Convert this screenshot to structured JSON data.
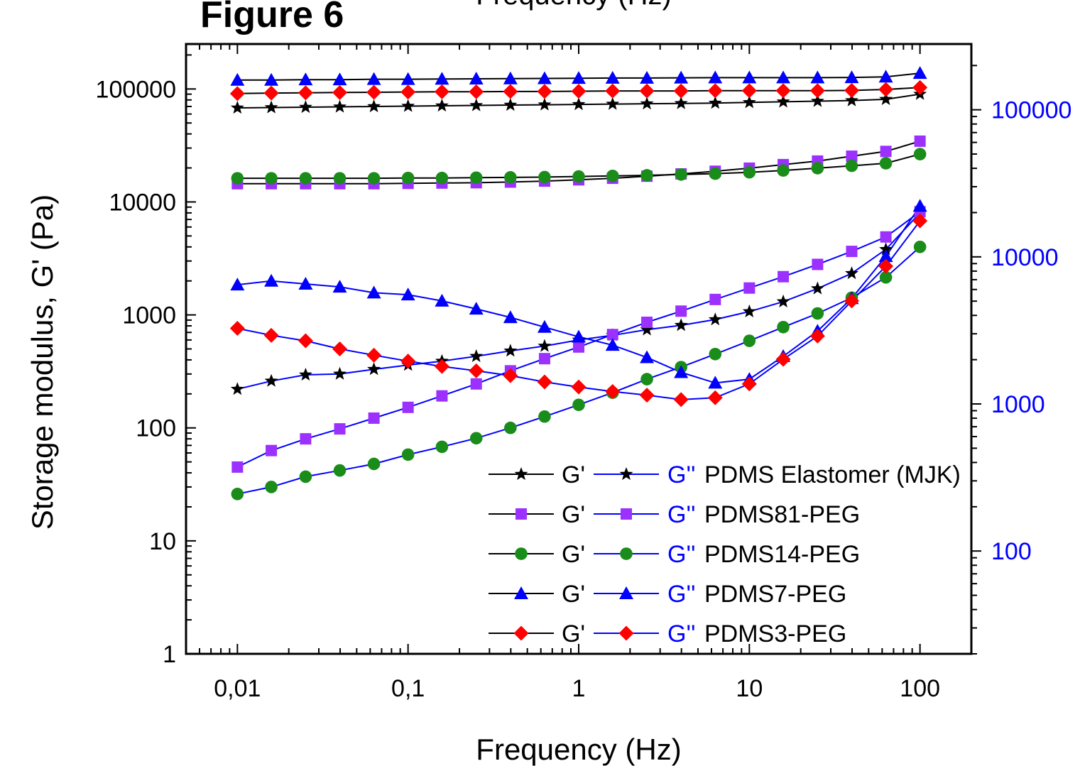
{
  "figure_label": "Figure 6",
  "top_cut_text": "Frequency (Hz)",
  "chart_data": {
    "type": "line",
    "title": "",
    "xlabel": "Frequency (Hz)",
    "ylabel": "Storage modulus, G' (Pa)",
    "x_scale": "log",
    "y_scale": "log",
    "y2_scale": "log",
    "xlim": [
      0.005,
      200
    ],
    "ylim": [
      1,
      250000
    ],
    "y2lim": [
      20,
      280000
    ],
    "x_ticks": [
      {
        "value": 0.01,
        "label": "0,01"
      },
      {
        "value": 0.1,
        "label": "0,1"
      },
      {
        "value": 1,
        "label": "1"
      },
      {
        "value": 10,
        "label": "10"
      },
      {
        "value": 100,
        "label": "100"
      }
    ],
    "y_ticks": [
      {
        "value": 1,
        "label": "1"
      },
      {
        "value": 10,
        "label": "10"
      },
      {
        "value": 100,
        "label": "100"
      },
      {
        "value": 1000,
        "label": "1000"
      },
      {
        "value": 10000,
        "label": "10000"
      },
      {
        "value": 100000,
        "label": "100000"
      }
    ],
    "y2_ticks": [
      {
        "value": 100,
        "label": "100"
      },
      {
        "value": 1000,
        "label": "1000"
      },
      {
        "value": 10000,
        "label": "10000"
      },
      {
        "value": 100000,
        "label": "100000"
      }
    ],
    "y2_color": "#0000ff",
    "grid": false,
    "legend_position": "bottom-right",
    "x": [
      0.01,
      0.0158,
      0.0251,
      0.0398,
      0.0631,
      0.1,
      0.158,
      0.251,
      0.398,
      0.631,
      1,
      1.58,
      2.51,
      3.98,
      6.31,
      10,
      15.8,
      25.1,
      39.8,
      63.1,
      100
    ],
    "series": [
      {
        "sample": "PDMS Elastomer (MJK)",
        "modulus": "G'",
        "marker": "star",
        "color": "#000000",
        "line_color": "#000000",
        "values": [
          68000,
          68500,
          69000,
          69500,
          70000,
          70500,
          71000,
          71500,
          72000,
          72500,
          73000,
          73500,
          74000,
          74500,
          75000,
          76000,
          77000,
          78000,
          79000,
          81000,
          90000
        ]
      },
      {
        "sample": "PDMS Elastomer (MJK)",
        "modulus": "G''",
        "marker": "star",
        "color": "#000000",
        "line_color": "#0000ff",
        "values": [
          220,
          260,
          295,
          300,
          330,
          360,
          390,
          430,
          480,
          530,
          600,
          660,
          740,
          810,
          910,
          1070,
          1310,
          1710,
          2330,
          3800,
          8000
        ]
      },
      {
        "sample": "PDMS81-PEG",
        "modulus": "G'",
        "marker": "square",
        "color": "#9b30ff",
        "line_color": "#000000",
        "values": [
          14500,
          14500,
          14500,
          14500,
          14500,
          14600,
          14700,
          14800,
          15000,
          15300,
          15700,
          16200,
          16900,
          17700,
          18700,
          19900,
          21400,
          23000,
          25400,
          28000,
          34500
        ]
      },
      {
        "sample": "PDMS81-PEG",
        "modulus": "G''",
        "marker": "square",
        "color": "#9b30ff",
        "line_color": "#0000ff",
        "values": [
          45,
          63,
          80,
          98,
          122,
          152,
          192,
          245,
          320,
          410,
          520,
          670,
          860,
          1080,
          1370,
          1730,
          2180,
          2800,
          3650,
          4900,
          8200
        ]
      },
      {
        "sample": "PDMS14-PEG",
        "modulus": "G'",
        "marker": "circle",
        "color": "#1a8c1a",
        "line_color": "#000000",
        "values": [
          16200,
          16200,
          16200,
          16200,
          16200,
          16300,
          16300,
          16400,
          16500,
          16600,
          16800,
          17000,
          17200,
          17500,
          17800,
          18300,
          19000,
          19900,
          20900,
          22000,
          26500
        ]
      },
      {
        "sample": "PDMS14-PEG",
        "modulus": "G''",
        "marker": "circle",
        "color": "#1a8c1a",
        "line_color": "#0000ff",
        "values": [
          26,
          30,
          37,
          42,
          48,
          58,
          68,
          81,
          100,
          126,
          160,
          205,
          270,
          345,
          450,
          590,
          780,
          1030,
          1420,
          2150,
          4000
        ]
      },
      {
        "sample": "PDMS7-PEG",
        "modulus": "G'",
        "marker": "triangle",
        "color": "#0000ff",
        "line_color": "#000000",
        "values": [
          120000,
          120000,
          121000,
          121000,
          122000,
          122000,
          122500,
          123000,
          123500,
          124000,
          124500,
          125000,
          125000,
          125500,
          126000,
          126000,
          126000,
          126000,
          126500,
          128000,
          138000
        ]
      },
      {
        "sample": "PDMS7-PEG",
        "modulus": "G''",
        "marker": "triangle",
        "color": "#0000ff",
        "line_color": "#0000ff",
        "values": [
          1850,
          2000,
          1880,
          1770,
          1570,
          1510,
          1330,
          1130,
          950,
          780,
          640,
          540,
          420,
          310,
          250,
          270,
          430,
          720,
          1400,
          3300,
          9200
        ]
      },
      {
        "sample": "PDMS3-PEG",
        "modulus": "G'",
        "marker": "diamond",
        "color": "#ff0000",
        "line_color": "#000000",
        "values": [
          91000,
          92000,
          92500,
          93000,
          93500,
          94000,
          94500,
          94500,
          95000,
          95000,
          95500,
          96000,
          96000,
          96000,
          96500,
          96500,
          96500,
          96500,
          97000,
          99000,
          103000
        ]
      },
      {
        "sample": "PDMS3-PEG",
        "modulus": "G''",
        "marker": "diamond",
        "color": "#ff0000",
        "line_color": "#0000ff",
        "values": [
          760,
          660,
          590,
          500,
          440,
          390,
          350,
          320,
          290,
          255,
          230,
          210,
          195,
          178,
          185,
          245,
          405,
          650,
          1330,
          2700,
          6800
        ]
      }
    ],
    "legend": {
      "prefix_gp": "G'",
      "prefix_gpp": "G''",
      "gp_color": "#000000",
      "gpp_color": "#0000ff",
      "entries": [
        {
          "label": "PDMS Elastomer (MJK)",
          "marker": "star",
          "color": "#000000"
        },
        {
          "label": "PDMS81-PEG",
          "marker": "square",
          "color": "#9b30ff"
        },
        {
          "label": "PDMS14-PEG",
          "marker": "circle",
          "color": "#1a8c1a"
        },
        {
          "label": "PDMS7-PEG",
          "marker": "triangle",
          "color": "#0000ff"
        },
        {
          "label": "PDMS3-PEG",
          "marker": "diamond",
          "color": "#ff0000"
        }
      ]
    }
  }
}
